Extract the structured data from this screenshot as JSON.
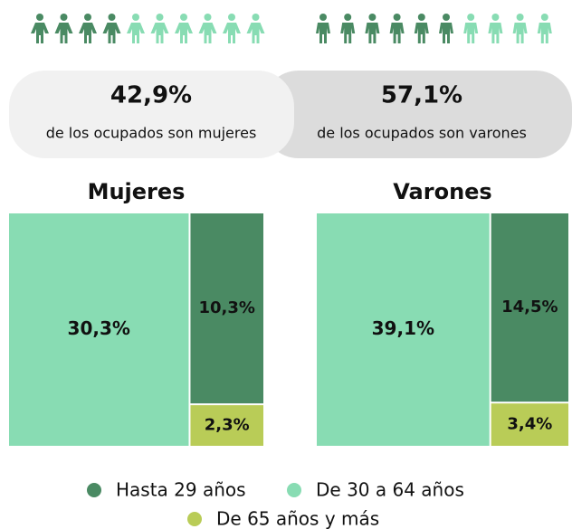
{
  "chart_data": {
    "type": "treemap",
    "series": [
      {
        "name": "Hasta 29 años",
        "color": "#4a8a63"
      },
      {
        "name": "De 30 a 64 años",
        "color": "#88dcb3"
      },
      {
        "name": "De 65 años y más",
        "color": "#b9cc57"
      }
    ],
    "panels": [
      {
        "title": "Mujeres",
        "total": 42.9,
        "total_label": "42,9%",
        "caption": "de los ocupados son mujeres",
        "values": [
          10.3,
          30.3,
          2.3
        ],
        "value_labels": [
          "10,3%",
          "30,3%",
          "2,3%"
        ]
      },
      {
        "title": "Varones",
        "total": 57.1,
        "total_label": "57,1%",
        "caption": "de los ocupados son varones",
        "values": [
          14.5,
          39.1,
          3.4
        ],
        "value_labels": [
          "14,5%",
          "39,1%",
          "3,4%"
        ]
      }
    ]
  }
}
